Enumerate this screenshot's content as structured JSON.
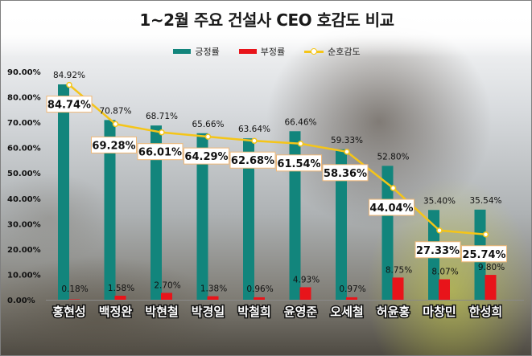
{
  "title": "1~2월 주요 건설사 CEO 호감도 비교",
  "legend": {
    "positive": "긍정률",
    "negative": "부정률",
    "favorability": "순호감도"
  },
  "colors": {
    "positive": "#12857c",
    "negative": "#e8141a",
    "favorability": "#f5c518",
    "label_border": "#f0b877"
  },
  "chart_data": {
    "type": "bar",
    "title": "1~2월 주요 건설사 CEO 호감도 비교",
    "categories": [
      "홍현성",
      "백정완",
      "박현철",
      "박경일",
      "박철희",
      "윤영준",
      "오세철",
      "허윤홍",
      "마창민",
      "한성희"
    ],
    "series": [
      {
        "name": "긍정률",
        "type": "bar",
        "values": [
          84.92,
          70.87,
          68.71,
          65.66,
          63.64,
          66.46,
          59.33,
          52.8,
          35.4,
          35.54
        ]
      },
      {
        "name": "부정률",
        "type": "bar",
        "values": [
          0.18,
          1.58,
          2.7,
          1.38,
          0.96,
          4.93,
          0.97,
          8.75,
          8.07,
          9.8
        ]
      },
      {
        "name": "순호감도",
        "type": "line",
        "values": [
          84.74,
          69.28,
          66.01,
          64.29,
          62.68,
          61.54,
          58.36,
          44.04,
          27.33,
          25.74
        ]
      }
    ],
    "y_ticks": [
      "0.00%",
      "10.00%",
      "20.00%",
      "30.00%",
      "40.00%",
      "50.00%",
      "60.00%",
      "70.00%",
      "80.00%",
      "90.00%"
    ],
    "ylim": [
      0,
      90
    ],
    "legend_position": "top",
    "grid": false
  }
}
